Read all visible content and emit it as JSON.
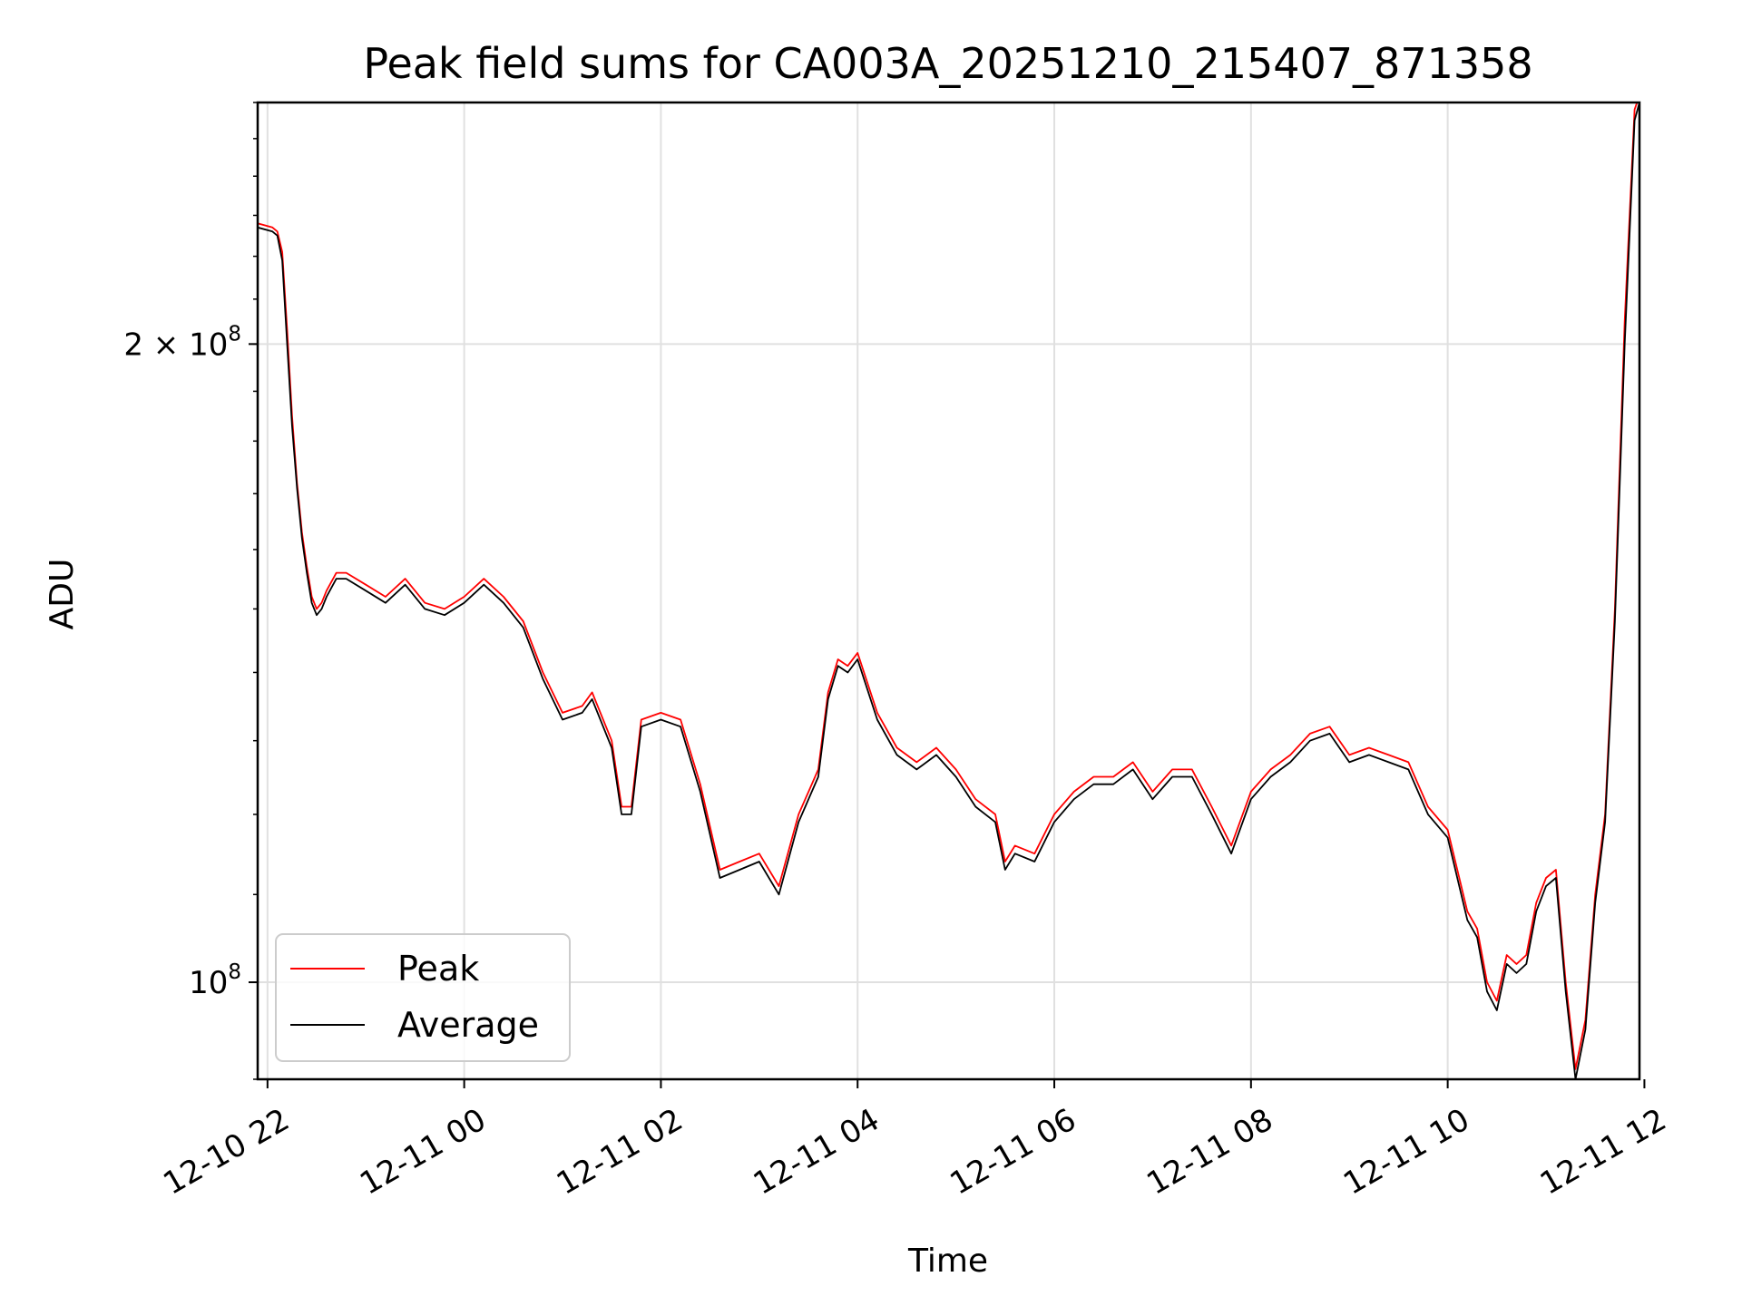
{
  "chart_data": {
    "type": "line",
    "title": "Peak field sums for CA003A_20251210_215407_871358",
    "xlabel": "Time",
    "ylabel": "ADU",
    "yscale": "log",
    "ylim": [
      90000000,
      260000000
    ],
    "xlim_hours": [
      -2.1,
      11.95
    ],
    "grid": true,
    "legend_location": "lower-left",
    "x_ticks": [
      {
        "label": "12-10 22",
        "hours": -2
      },
      {
        "label": "12-11 00",
        "hours": 0
      },
      {
        "label": "12-11 02",
        "hours": 2
      },
      {
        "label": "12-11 04",
        "hours": 4
      },
      {
        "label": "12-11 06",
        "hours": 6
      },
      {
        "label": "12-11 08",
        "hours": 8
      },
      {
        "label": "12-11 10",
        "hours": 10
      },
      {
        "label": "12-11 12",
        "hours": 12
      }
    ],
    "y_ticks": [
      {
        "mantissa": "2 × 10",
        "exponent": "8",
        "value": 200000000
      },
      {
        "mantissa": "10",
        "exponent": "8",
        "value": 100000000
      }
    ],
    "series": [
      {
        "name": "Peak",
        "color": "#ff0000",
        "x_hours": [
          -2.1,
          -1.95,
          -1.9,
          -1.85,
          -1.8,
          -1.75,
          -1.7,
          -1.65,
          -1.6,
          -1.55,
          -1.5,
          -1.45,
          -1.4,
          -1.3,
          -1.2,
          -1.0,
          -0.8,
          -0.6,
          -0.4,
          -0.2,
          0.0,
          0.2,
          0.4,
          0.6,
          0.8,
          1.0,
          1.2,
          1.3,
          1.5,
          1.6,
          1.7,
          1.8,
          2.0,
          2.2,
          2.4,
          2.6,
          2.8,
          3.0,
          3.2,
          3.4,
          3.6,
          3.7,
          3.8,
          3.9,
          4.0,
          4.2,
          4.4,
          4.6,
          4.8,
          5.0,
          5.2,
          5.4,
          5.5,
          5.6,
          5.8,
          6.0,
          6.2,
          6.4,
          6.6,
          6.8,
          7.0,
          7.2,
          7.4,
          7.6,
          7.8,
          8.0,
          8.2,
          8.4,
          8.6,
          8.8,
          9.0,
          9.2,
          9.4,
          9.6,
          9.8,
          10.0,
          10.2,
          10.3,
          10.4,
          10.5,
          10.6,
          10.7,
          10.8,
          10.9,
          11.0,
          11.1,
          11.2,
          11.3,
          11.4,
          11.5,
          11.6,
          11.7,
          11.8,
          11.9,
          11.95
        ],
        "values": [
          228000000,
          227000000,
          226000000,
          221000000,
          203000000,
          185000000,
          172000000,
          163000000,
          157000000,
          152000000,
          150000000,
          151000000,
          153000000,
          156000000,
          156000000,
          154000000,
          152000000,
          155000000,
          151000000,
          150000000,
          152000000,
          155000000,
          152000000,
          148000000,
          140000000,
          134000000,
          135000000,
          137000000,
          130000000,
          121000000,
          121000000,
          133000000,
          134000000,
          133000000,
          124000000,
          113000000,
          114000000,
          115000000,
          111000000,
          120000000,
          126000000,
          137000000,
          142000000,
          141000000,
          143000000,
          134000000,
          129000000,
          127000000,
          129000000,
          126000000,
          122000000,
          120000000,
          114000000,
          116000000,
          115000000,
          120000000,
          123000000,
          125000000,
          125000000,
          127000000,
          123000000,
          126000000,
          126000000,
          121000000,
          116000000,
          123000000,
          126000000,
          128000000,
          131000000,
          132000000,
          128000000,
          129000000,
          128000000,
          127000000,
          121000000,
          118000000,
          108000000,
          106000000,
          100000000,
          98000000,
          103000000,
          102000000,
          103000000,
          109000000,
          112000000,
          113000000,
          100000000,
          91000000,
          96000000,
          110000000,
          120000000,
          150000000,
          205000000,
          258000000,
          262000000
        ]
      },
      {
        "name": "Average",
        "color": "#000000",
        "x_hours": [
          -2.1,
          -1.95,
          -1.9,
          -1.85,
          -1.8,
          -1.75,
          -1.7,
          -1.65,
          -1.6,
          -1.55,
          -1.5,
          -1.45,
          -1.4,
          -1.3,
          -1.2,
          -1.0,
          -0.8,
          -0.6,
          -0.4,
          -0.2,
          0.0,
          0.2,
          0.4,
          0.6,
          0.8,
          1.0,
          1.2,
          1.3,
          1.5,
          1.6,
          1.7,
          1.8,
          2.0,
          2.2,
          2.4,
          2.6,
          2.8,
          3.0,
          3.2,
          3.4,
          3.6,
          3.7,
          3.8,
          3.9,
          4.0,
          4.2,
          4.4,
          4.6,
          4.8,
          5.0,
          5.2,
          5.4,
          5.5,
          5.6,
          5.8,
          6.0,
          6.2,
          6.4,
          6.6,
          6.8,
          7.0,
          7.2,
          7.4,
          7.6,
          7.8,
          8.0,
          8.2,
          8.4,
          8.6,
          8.8,
          9.0,
          9.2,
          9.4,
          9.6,
          9.8,
          10.0,
          10.2,
          10.3,
          10.4,
          10.5,
          10.6,
          10.7,
          10.8,
          10.9,
          11.0,
          11.1,
          11.2,
          11.3,
          11.4,
          11.5,
          11.6,
          11.7,
          11.8,
          11.9,
          11.95
        ],
        "values": [
          227000000,
          226000000,
          225000000,
          219000000,
          200000000,
          183000000,
          171000000,
          162000000,
          156000000,
          151000000,
          149000000,
          150000000,
          152000000,
          155000000,
          155000000,
          153000000,
          151000000,
          154000000,
          150000000,
          149000000,
          151000000,
          154000000,
          151000000,
          147000000,
          139000000,
          133000000,
          134000000,
          136000000,
          129000000,
          120000000,
          120000000,
          132000000,
          133000000,
          132000000,
          123000000,
          112000000,
          113000000,
          114000000,
          110000000,
          119000000,
          125000000,
          136000000,
          141000000,
          140000000,
          142000000,
          133000000,
          128000000,
          126000000,
          128000000,
          125000000,
          121000000,
          119000000,
          113000000,
          115000000,
          114000000,
          119000000,
          122000000,
          124000000,
          124000000,
          126000000,
          122000000,
          125000000,
          125000000,
          120000000,
          115000000,
          122000000,
          125000000,
          127000000,
          130000000,
          131000000,
          127000000,
          128000000,
          127000000,
          126000000,
          120000000,
          117000000,
          107000000,
          105000000,
          99000000,
          97000000,
          102000000,
          101000000,
          102000000,
          108000000,
          111000000,
          112000000,
          99000000,
          90000000,
          95000000,
          109000000,
          119000000,
          148000000,
          200000000,
          255000000,
          260000000
        ]
      }
    ]
  }
}
